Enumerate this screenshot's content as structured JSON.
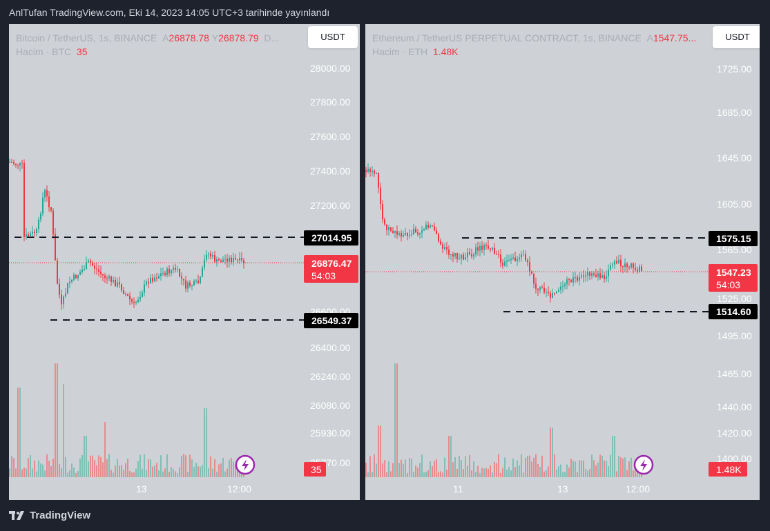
{
  "header": {
    "title": "AnlTufan TradingView.com, Eki 14, 2023 14:05 UTC+3 tarihinde yayınlandı"
  },
  "footer": {
    "brand": "TradingView"
  },
  "colors": {
    "page_bg": "#1e222d",
    "chart_bg": "#ced1d5",
    "up": "#26a69a",
    "down": "#f23645",
    "vol_up": "#7fbfb5",
    "vol_down": "#e88a8e",
    "axis_text": "#ffffff"
  },
  "left": {
    "symbol": "Bitcoin / TetherUS, 1s, BINANCE",
    "ask_prefix": "A",
    "ask": "26878.78",
    "bid_prefix": "Y",
    "bid": "26878.79",
    "trailing": "D...",
    "volume_label": "Hacim · BTC",
    "volume_value": "35",
    "currency": "USDT",
    "price_axis": [
      "28000.00",
      "27800.00",
      "27600.00",
      "27400.00",
      "27200.00",
      "26600.00",
      "26400.00",
      "26240.00",
      "26080.00",
      "25930.00",
      "25770.00"
    ],
    "time_axis": [
      "13",
      "12:00"
    ],
    "line_labels": [
      "27014.95",
      "26549.37"
    ],
    "current_price": "26876.47",
    "countdown": "54:03",
    "volume_badge": "35"
  },
  "right": {
    "symbol": "Ethereum / TetherUS PERPETUAL CONTRACT, 1s, BINANCE",
    "ask_prefix": "A",
    "ask": "1547.75...",
    "volume_label": "Hacim · ETH",
    "volume_value": "1.48K",
    "currency": "USDT",
    "price_axis": [
      "1725.00",
      "1685.00",
      "1645.00",
      "1605.00",
      "1565.00",
      "1525.00",
      "1495.00",
      "1465.00",
      "1440.00",
      "1420.00",
      "1400.00"
    ],
    "time_axis": [
      "11",
      "13",
      "12:00"
    ],
    "line_labels": [
      "1575.15",
      "1514.60"
    ],
    "current_price": "1547.23",
    "countdown": "54:03",
    "volume_badge": "1.48K"
  }
}
